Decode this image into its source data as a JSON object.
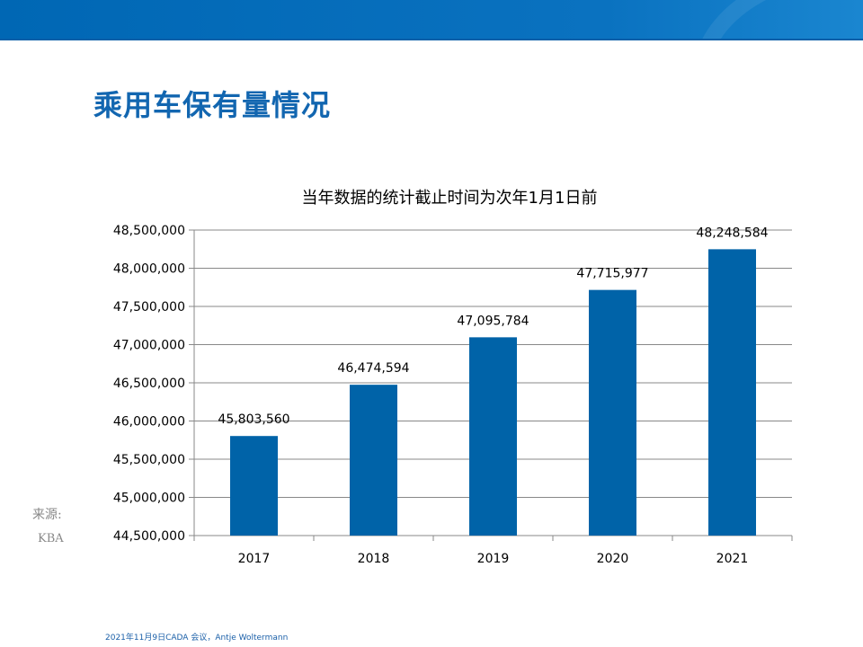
{
  "slide": {
    "title": "乘用车保有量情况",
    "source_label": "来源:",
    "source_value": "KBA",
    "footer": "2021年11月9日CADA 会议，Antje Woltermann",
    "colors": {
      "header": "#0067b4",
      "title": "#1266b0",
      "bar": "#0063a8"
    }
  },
  "chart_data": {
    "type": "bar",
    "title": "当年数据的统计截止时间为次年1月1日前",
    "categories": [
      "2017",
      "2018",
      "2019",
      "2020",
      "2021"
    ],
    "values": [
      45803560,
      46474594,
      47095784,
      47715977,
      48248584
    ],
    "data_labels": [
      "45,803,560",
      "46,474,594",
      "47,095,784",
      "47,715,977",
      "48,248,584"
    ],
    "ylim": [
      44500000,
      48500000
    ],
    "yticks": [
      44500000,
      45000000,
      45500000,
      46000000,
      46500000,
      47000000,
      47500000,
      48000000,
      48500000
    ],
    "ytick_labels": [
      "44,500,000",
      "45,000,000",
      "45,500,000",
      "46,000,000",
      "46,500,000",
      "47,000,000",
      "47,500,000",
      "48,000,000",
      "48,500,000"
    ],
    "grid": true,
    "legend": "none"
  }
}
